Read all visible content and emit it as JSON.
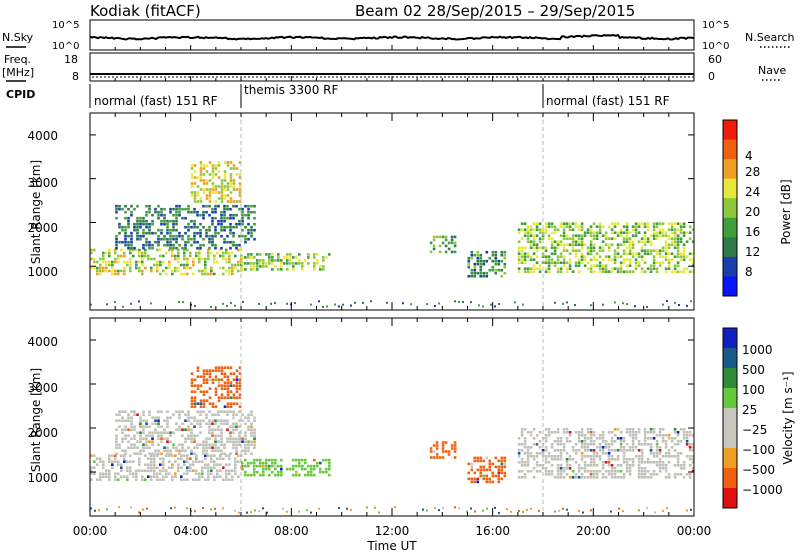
{
  "header": {
    "station": "Kodiak (fitACF)",
    "beam_dates": "Beam 02  28/Sep/2015 – 29/Sep/2015"
  },
  "top_panels": {
    "nsky_label": "N.Sky",
    "nsky_ticks": [
      "10^5",
      "10^0"
    ],
    "nsearch_label": "N.Search",
    "nsearch_ticks": [
      "10^5",
      "10^0"
    ],
    "freq_label_1": "Freq.",
    "freq_label_2": "[MHz]",
    "freq_ticks": [
      "18",
      "8"
    ],
    "nave_label": "Nave",
    "nave_ticks": [
      "60",
      "0"
    ],
    "cpid_label": "CPID",
    "cpid_segments": [
      {
        "label": "normal (fast) 151 RF",
        "start_hour": 0,
        "end_hour": 6
      },
      {
        "label": "themis 3300 RF",
        "start_hour": 6,
        "end_hour": 18
      },
      {
        "label": "normal (fast) 151 RF",
        "start_hour": 18,
        "end_hour": 24
      }
    ]
  },
  "colors": {
    "power_scale": [
      "#0a14ff",
      "#1a3fa8",
      "#2e7a4a",
      "#3f9e3a",
      "#8cc83a",
      "#e8e83a",
      "#f0a020",
      "#f06010",
      "#f01a0a"
    ],
    "velocity_scale": [
      "#1020c0",
      "#1a5a8a",
      "#2e8a3a",
      "#66c83a",
      "#c8c8c0",
      "#c8c8c0",
      "#f0a020",
      "#f06010",
      "#e01010"
    ],
    "ground_scatter": "#c0c0b8"
  },
  "chart_data": [
    {
      "type": "heatmap",
      "name": "power-panel",
      "xlabel": "",
      "ylabel": "Slant Range [km]",
      "ylim": [
        0,
        4500
      ],
      "yticks": [
        "1000",
        "2000",
        "3000",
        "4000"
      ],
      "colorbar": {
        "label": "Power [dB]",
        "range": [
          0,
          32
        ],
        "ticks": [
          "4",
          "8",
          "12",
          "16",
          "20",
          "24",
          "28"
        ]
      },
      "regions": [
        {
          "x_hours": [
            0.0,
            6.0
          ],
          "range_km": [
            800,
            1400
          ],
          "level_db": 18
        },
        {
          "x_hours": [
            1.0,
            6.5
          ],
          "range_km": [
            1400,
            2400
          ],
          "level_db": 8
        },
        {
          "x_hours": [
            4.0,
            6.0
          ],
          "range_km": [
            2500,
            3400
          ],
          "level_db": 20
        },
        {
          "x_hours": [
            6.0,
            9.5
          ],
          "range_km": [
            950,
            1300
          ],
          "level_db": 16
        },
        {
          "x_hours": [
            13.5,
            14.5
          ],
          "range_km": [
            1300,
            1700
          ],
          "level_db": 12
        },
        {
          "x_hours": [
            15.0,
            16.5
          ],
          "range_km": [
            800,
            1350
          ],
          "level_db": 10
        },
        {
          "x_hours": [
            17.0,
            24.0
          ],
          "range_km": [
            900,
            2000
          ],
          "level_db": 16
        }
      ]
    },
    {
      "type": "heatmap",
      "name": "velocity-panel",
      "xlabel": "Time UT",
      "ylabel": "Slant Range [km]",
      "ylim": [
        0,
        4500
      ],
      "yticks": [
        "1000",
        "2000",
        "3000",
        "4000"
      ],
      "xticks": [
        "00:00",
        "04:00",
        "08:00",
        "12:00",
        "16:00",
        "20:00",
        "00:00"
      ],
      "colorbar": {
        "label": "Velocity [m s⁻¹]",
        "ticks": [
          "1000",
          "500",
          "100",
          "25",
          "−25",
          "−100",
          "−500",
          "−1000"
        ]
      },
      "regions": [
        {
          "x_hours": [
            0.0,
            6.0
          ],
          "range_km": [
            800,
            1400
          ],
          "velocity": 0
        },
        {
          "x_hours": [
            1.0,
            6.5
          ],
          "range_km": [
            1400,
            2400
          ],
          "velocity": 0
        },
        {
          "x_hours": [
            4.0,
            6.0
          ],
          "range_km": [
            2500,
            3400
          ],
          "velocity": -300
        },
        {
          "x_hours": [
            6.0,
            9.5
          ],
          "range_km": [
            950,
            1300
          ],
          "velocity": 100
        },
        {
          "x_hours": [
            13.5,
            14.5
          ],
          "range_km": [
            1300,
            1700
          ],
          "velocity": -150
        },
        {
          "x_hours": [
            15.0,
            16.5
          ],
          "range_km": [
            800,
            1350
          ],
          "velocity": -200
        },
        {
          "x_hours": [
            17.0,
            24.0
          ],
          "range_km": [
            900,
            2000
          ],
          "velocity": 0
        }
      ]
    }
  ]
}
